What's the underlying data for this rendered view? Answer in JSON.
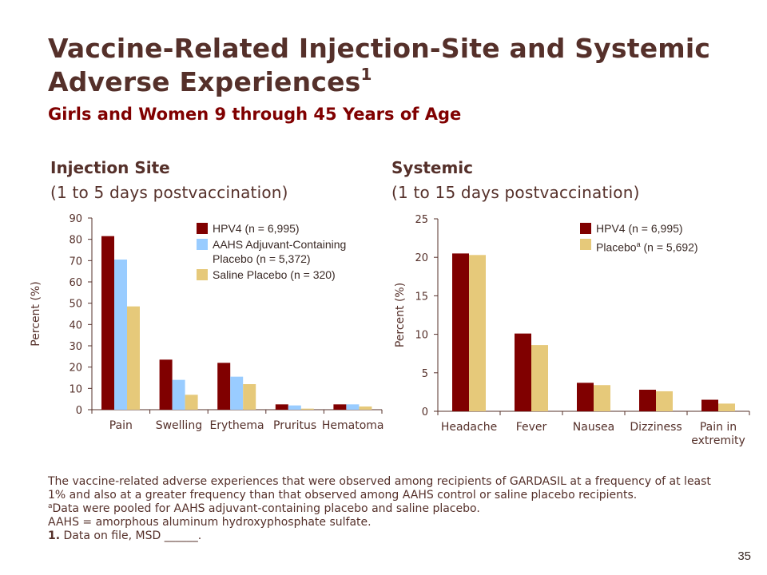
{
  "slide": {
    "title": "Vaccine-Related Injection-Site and Systemic Adverse Experiences",
    "title_sup": "1",
    "subtitle": "Girls and Women 9 through 45 Years of Age",
    "page_number": "35"
  },
  "panels": {
    "left": {
      "heading": "Injection Site",
      "subheading": "(1 to 5 days postvaccination)"
    },
    "right": {
      "heading": "Systemic",
      "subheading": "(1 to 15 days postvaccination)"
    }
  },
  "legend_left": [
    {
      "text": "HPV4 (n = 6,995)",
      "color": "#800000"
    },
    {
      "text": "AAHS Adjuvant-Containing",
      "text2": "Placebo (n = 5,372)",
      "color": "#99ccff"
    },
    {
      "text": "Saline Placebo (n = 320)",
      "color": "#e6c97a"
    }
  ],
  "legend_right": [
    {
      "text": "HPV4 (n = 6,995)",
      "color": "#800000"
    },
    {
      "text": "Placebo",
      "sup": "a",
      "text_after": " (n = 5,692)",
      "color": "#e6c97a"
    }
  ],
  "chart_data": [
    {
      "type": "bar",
      "categories": [
        "Pain",
        "Swelling",
        "Erythema",
        "Pruritus",
        "Hematoma"
      ],
      "series": [
        {
          "name": "HPV4 (n = 6,995)",
          "values": [
            81.5,
            23.5,
            22,
            2.5,
            2.5
          ],
          "color": "#800000"
        },
        {
          "name": "AAHS Adjuvant-Containing Placebo (n = 5,372)",
          "values": [
            70.5,
            14,
            15.5,
            2,
            2.5
          ],
          "color": "#99ccff"
        },
        {
          "name": "Saline Placebo (n = 320)",
          "values": [
            48.5,
            7,
            12,
            0.5,
            1.5
          ],
          "color": "#e6c97a"
        }
      ],
      "ylabel": "Percent (%)",
      "ylim": [
        0,
        90
      ],
      "yticks": [
        0,
        10,
        20,
        30,
        40,
        50,
        60,
        70,
        80,
        90
      ],
      "legend_position": "top-right"
    },
    {
      "type": "bar",
      "categories": [
        "Headache",
        "Fever",
        "Nausea",
        "Dizziness",
        "Pain in extremity"
      ],
      "category_lines": [
        [
          "Headache"
        ],
        [
          "Fever"
        ],
        [
          "Nausea"
        ],
        [
          "Dizziness"
        ],
        [
          "Pain in",
          "extremity"
        ]
      ],
      "series": [
        {
          "name": "HPV4 (n = 6,995)",
          "values": [
            20.5,
            10.1,
            3.7,
            2.8,
            1.5
          ],
          "color": "#800000"
        },
        {
          "name": "Placebo (n = 5,692)",
          "values": [
            20.3,
            8.6,
            3.4,
            2.6,
            1.0
          ],
          "color": "#e6c97a"
        }
      ],
      "ylabel": "Percent (%)",
      "ylim": [
        0,
        25
      ],
      "yticks": [
        0,
        5,
        10,
        15,
        20,
        25
      ],
      "legend_position": "top-right"
    }
  ],
  "footnotes": {
    "main": "The vaccine-related adverse experiences that were observed among recipients of GARDASIL at a frequency of at least 1% and also at a greater frequency than that observed among AAHS control or saline placebo recipients.",
    "a_mark": "a",
    "a_text": "Data were pooled for AAHS adjuvant-containing placebo and saline placebo.",
    "aahs": "AAHS = amorphous aluminum hydroxyphosphate sulfate.",
    "ref_num": "1.",
    "ref_text": " Data on file, MSD ______."
  }
}
